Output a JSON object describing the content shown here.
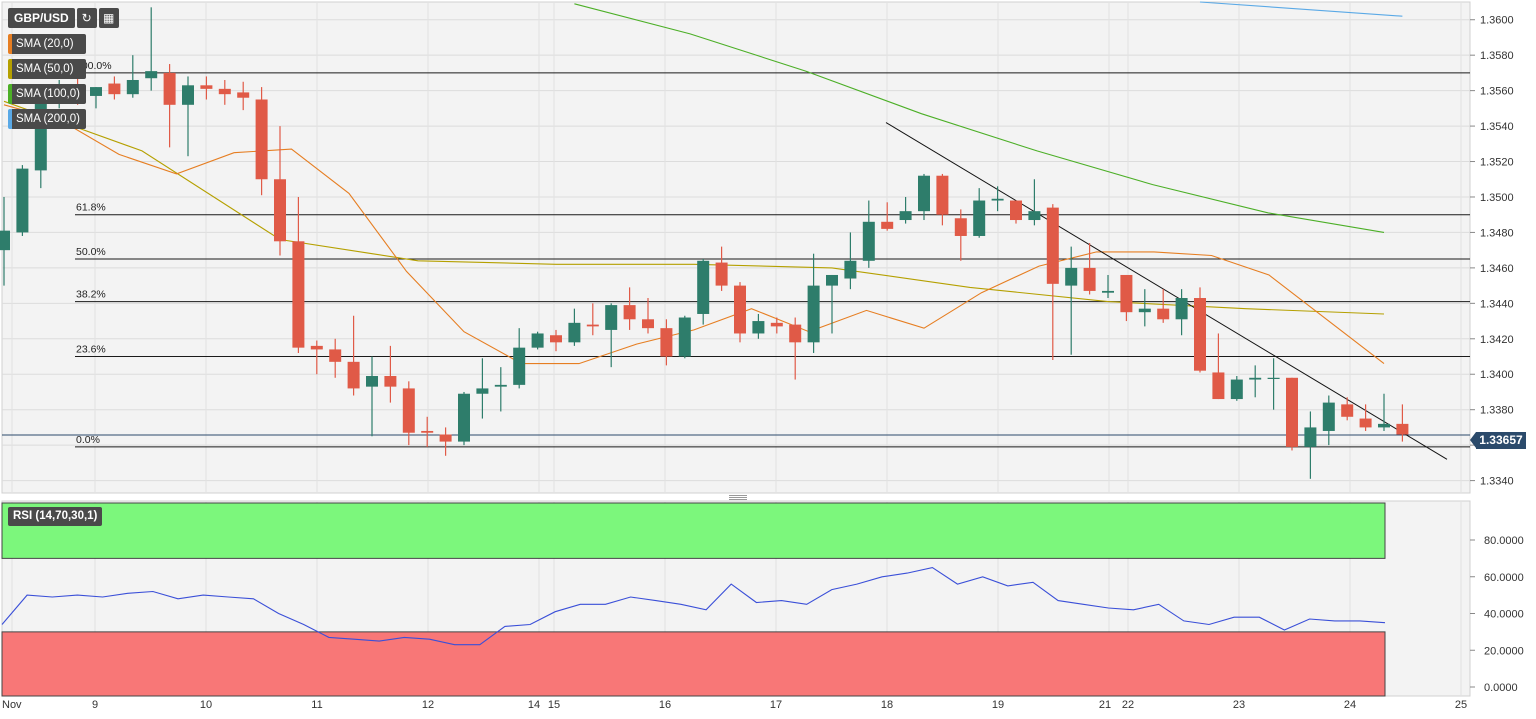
{
  "toolbar": {
    "symbol": "GBP/USD",
    "refresh_icon": "refresh-icon",
    "calendar_icon": "calendar-icon"
  },
  "indicators": [
    {
      "label": "SMA (20,0)",
      "color": "#e67e22"
    },
    {
      "label": "SMA (50,0)",
      "color": "#b5a000"
    },
    {
      "label": "SMA (100,0)",
      "color": "#4caf27"
    },
    {
      "label": "SMA (200,0)",
      "color": "#5aa9e6"
    }
  ],
  "current_price": "1.33657",
  "rsi": {
    "label": "RSI (14,70,30,1)"
  },
  "colors": {
    "up": "#2e7d6b",
    "down": "#e05a47",
    "rsi_line": "#3a4fd8",
    "overbought": "#7cf77c",
    "oversold": "#f87777"
  },
  "chart_data": [
    {
      "type": "candlestick",
      "symbol": "GBP/USD",
      "x_labels": [
        "Nov",
        "9",
        "10",
        "11",
        "12",
        "14",
        "15",
        "16",
        "17",
        "18",
        "19",
        "21",
        "22",
        "23",
        "24",
        "25"
      ],
      "y_ticks": [
        "1.3340",
        "1.3360",
        "1.3380",
        "1.3400",
        "1.3420",
        "1.3440",
        "1.3460",
        "1.3480",
        "1.3500",
        "1.3520",
        "1.3540",
        "1.3560",
        "1.3580",
        "1.3600"
      ],
      "ylim": [
        1.3333,
        1.361
      ],
      "fibonacci": [
        {
          "label": "100.0%",
          "value": 1.357
        },
        {
          "label": "61.8%",
          "value": 1.349
        },
        {
          "label": "50.0%",
          "value": 1.3465
        },
        {
          "label": "38.2%",
          "value": 1.3441
        },
        {
          "label": "23.6%",
          "value": 1.341
        },
        {
          "label": "0.0%",
          "value": 1.3359
        }
      ],
      "current_price": 1.33657,
      "trendline": {
        "start": 1.3542,
        "end": 1.3352
      },
      "candles": [
        {
          "o": 1.347,
          "h": 1.35,
          "l": 1.345,
          "c": 1.3481
        },
        {
          "o": 1.348,
          "h": 1.3518,
          "l": 1.3478,
          "c": 1.3516
        },
        {
          "o": 1.3515,
          "h": 1.356,
          "l": 1.3505,
          "c": 1.3558
        },
        {
          "o": 1.3556,
          "h": 1.3566,
          "l": 1.355,
          "c": 1.3561
        },
        {
          "o": 1.3562,
          "h": 1.357,
          "l": 1.3552,
          "c": 1.3556
        },
        {
          "o": 1.3557,
          "h": 1.3562,
          "l": 1.355,
          "c": 1.3562
        },
        {
          "o": 1.3564,
          "h": 1.3568,
          "l": 1.3555,
          "c": 1.3558
        },
        {
          "o": 1.3558,
          "h": 1.358,
          "l": 1.3556,
          "c": 1.3566
        },
        {
          "o": 1.3567,
          "h": 1.3607,
          "l": 1.356,
          "c": 1.3571
        },
        {
          "o": 1.357,
          "h": 1.3575,
          "l": 1.3528,
          "c": 1.3552
        },
        {
          "o": 1.3552,
          "h": 1.3568,
          "l": 1.3523,
          "c": 1.3563
        },
        {
          "o": 1.3563,
          "h": 1.3568,
          "l": 1.3555,
          "c": 1.3561
        },
        {
          "o": 1.3561,
          "h": 1.3566,
          "l": 1.3552,
          "c": 1.3558
        },
        {
          "o": 1.3559,
          "h": 1.3565,
          "l": 1.3549,
          "c": 1.3556
        },
        {
          "o": 1.3555,
          "h": 1.3562,
          "l": 1.3501,
          "c": 1.351
        },
        {
          "o": 1.351,
          "h": 1.354,
          "l": 1.3467,
          "c": 1.3475
        },
        {
          "o": 1.3475,
          "h": 1.35,
          "l": 1.3412,
          "c": 1.3415
        },
        {
          "o": 1.3416,
          "h": 1.3419,
          "l": 1.34,
          "c": 1.3414
        },
        {
          "o": 1.3414,
          "h": 1.342,
          "l": 1.3398,
          "c": 1.3407
        },
        {
          "o": 1.3407,
          "h": 1.3433,
          "l": 1.3388,
          "c": 1.3392
        },
        {
          "o": 1.3393,
          "h": 1.341,
          "l": 1.3365,
          "c": 1.3399
        },
        {
          "o": 1.3399,
          "h": 1.3416,
          "l": 1.3384,
          "c": 1.3393
        },
        {
          "o": 1.3392,
          "h": 1.3396,
          "l": 1.336,
          "c": 1.3367
        },
        {
          "o": 1.3368,
          "h": 1.3376,
          "l": 1.3359,
          "c": 1.3367
        },
        {
          "o": 1.3366,
          "h": 1.337,
          "l": 1.3354,
          "c": 1.3362
        },
        {
          "o": 1.3362,
          "h": 1.339,
          "l": 1.336,
          "c": 1.3389
        },
        {
          "o": 1.3389,
          "h": 1.3409,
          "l": 1.3375,
          "c": 1.3392
        },
        {
          "o": 1.3393,
          "h": 1.3404,
          "l": 1.3379,
          "c": 1.3394
        },
        {
          "o": 1.3394,
          "h": 1.3426,
          "l": 1.3392,
          "c": 1.3415
        },
        {
          "o": 1.3415,
          "h": 1.3424,
          "l": 1.3414,
          "c": 1.3423
        },
        {
          "o": 1.3422,
          "h": 1.3425,
          "l": 1.3413,
          "c": 1.3418
        },
        {
          "o": 1.3418,
          "h": 1.3437,
          "l": 1.3416,
          "c": 1.3429
        },
        {
          "o": 1.3428,
          "h": 1.344,
          "l": 1.3422,
          "c": 1.3427
        },
        {
          "o": 1.3425,
          "h": 1.344,
          "l": 1.3404,
          "c": 1.3439
        },
        {
          "o": 1.3439,
          "h": 1.3449,
          "l": 1.3425,
          "c": 1.3431
        },
        {
          "o": 1.3431,
          "h": 1.3443,
          "l": 1.3423,
          "c": 1.3426
        },
        {
          "o": 1.3426,
          "h": 1.3431,
          "l": 1.3405,
          "c": 1.341
        },
        {
          "o": 1.341,
          "h": 1.3433,
          "l": 1.3409,
          "c": 1.3432
        },
        {
          "o": 1.3434,
          "h": 1.3465,
          "l": 1.3428,
          "c": 1.3464
        },
        {
          "o": 1.3463,
          "h": 1.3472,
          "l": 1.3447,
          "c": 1.345
        },
        {
          "o": 1.345,
          "h": 1.3452,
          "l": 1.3418,
          "c": 1.3423
        },
        {
          "o": 1.3423,
          "h": 1.3434,
          "l": 1.342,
          "c": 1.343
        },
        {
          "o": 1.3429,
          "h": 1.3432,
          "l": 1.3423,
          "c": 1.3427
        },
        {
          "o": 1.3428,
          "h": 1.3432,
          "l": 1.3397,
          "c": 1.3418
        },
        {
          "o": 1.3418,
          "h": 1.3468,
          "l": 1.3412,
          "c": 1.345
        },
        {
          "o": 1.345,
          "h": 1.3456,
          "l": 1.3423,
          "c": 1.3456
        },
        {
          "o": 1.3454,
          "h": 1.348,
          "l": 1.3448,
          "c": 1.3464
        },
        {
          "o": 1.3464,
          "h": 1.3498,
          "l": 1.346,
          "c": 1.3486
        },
        {
          "o": 1.3486,
          "h": 1.3497,
          "l": 1.3481,
          "c": 1.3482
        },
        {
          "o": 1.3487,
          "h": 1.35,
          "l": 1.3485,
          "c": 1.3492
        },
        {
          "o": 1.3492,
          "h": 1.3513,
          "l": 1.3487,
          "c": 1.3512
        },
        {
          "o": 1.3512,
          "h": 1.3513,
          "l": 1.3484,
          "c": 1.349
        },
        {
          "o": 1.3488,
          "h": 1.3493,
          "l": 1.3464,
          "c": 1.3478
        },
        {
          "o": 1.3478,
          "h": 1.3505,
          "l": 1.3477,
          "c": 1.3498
        },
        {
          "o": 1.3498,
          "h": 1.3506,
          "l": 1.3492,
          "c": 1.3499
        },
        {
          "o": 1.3498,
          "h": 1.3497,
          "l": 1.3485,
          "c": 1.3487
        },
        {
          "o": 1.3487,
          "h": 1.351,
          "l": 1.3484,
          "c": 1.3492
        },
        {
          "o": 1.3494,
          "h": 1.3496,
          "l": 1.3408,
          "c": 1.3451
        },
        {
          "o": 1.345,
          "h": 1.3472,
          "l": 1.3411,
          "c": 1.346
        },
        {
          "o": 1.346,
          "h": 1.3474,
          "l": 1.3445,
          "c": 1.3447
        },
        {
          "o": 1.3446,
          "h": 1.3456,
          "l": 1.3443,
          "c": 1.3447
        },
        {
          "o": 1.3456,
          "h": 1.3456,
          "l": 1.343,
          "c": 1.3435
        },
        {
          "o": 1.3435,
          "h": 1.3448,
          "l": 1.3427,
          "c": 1.3437
        },
        {
          "o": 1.3437,
          "h": 1.3448,
          "l": 1.3429,
          "c": 1.3431
        },
        {
          "o": 1.3431,
          "h": 1.3448,
          "l": 1.3422,
          "c": 1.3443
        },
        {
          "o": 1.3443,
          "h": 1.3449,
          "l": 1.3401,
          "c": 1.3402
        },
        {
          "o": 1.3401,
          "h": 1.3423,
          "l": 1.3386,
          "c": 1.3386
        },
        {
          "o": 1.3386,
          "h": 1.3399,
          "l": 1.3385,
          "c": 1.3397
        },
        {
          "o": 1.3397,
          "h": 1.3405,
          "l": 1.3387,
          "c": 1.3398
        },
        {
          "o": 1.3398,
          "h": 1.3409,
          "l": 1.338,
          "c": 1.3398
        },
        {
          "o": 1.3398,
          "h": 1.3398,
          "l": 1.3357,
          "c": 1.3359
        },
        {
          "o": 1.3359,
          "h": 1.3379,
          "l": 1.3341,
          "c": 1.337
        },
        {
          "o": 1.3368,
          "h": 1.3388,
          "l": 1.336,
          "c": 1.3384
        },
        {
          "o": 1.3383,
          "h": 1.3387,
          "l": 1.3374,
          "c": 1.3376
        },
        {
          "o": 1.3375,
          "h": 1.3383,
          "l": 1.3368,
          "c": 1.337
        },
        {
          "o": 1.337,
          "h": 1.3389,
          "l": 1.3368,
          "c": 1.3372
        },
        {
          "o": 1.3372,
          "h": 1.3383,
          "l": 1.3362,
          "c": 1.3366
        }
      ],
      "sma20": [
        1.3552,
        1.3543,
        1.3524,
        1.3513,
        1.3525,
        1.3527,
        1.3502,
        1.3458,
        1.3424,
        1.3406,
        1.3406,
        1.3417,
        1.3425,
        1.3437,
        1.3424,
        1.3436,
        1.3426,
        1.3446,
        1.3461,
        1.3469,
        1.3469,
        1.3467,
        1.3456,
        1.3431,
        1.3406
      ],
      "sma50": [
        1.3554,
        1.3526,
        1.3476,
        1.3464,
        1.3462,
        1.3462,
        1.346,
        1.3449,
        1.3441,
        1.3437,
        1.3434
      ],
      "sma100": [
        1.3609,
        1.3592,
        1.3571,
        1.3547,
        1.3526,
        1.3507,
        1.3491,
        1.348
      ],
      "sma200": [
        1.361,
        1.3602
      ],
      "rsi_values": [
        34,
        50,
        49,
        50,
        49,
        51,
        52,
        48,
        50,
        49,
        48,
        40,
        34,
        27,
        26,
        25,
        27,
        26,
        23,
        23,
        33,
        34,
        41,
        45,
        45,
        49,
        47,
        45,
        42,
        56,
        46,
        47,
        45,
        53,
        56,
        60,
        62,
        65,
        56,
        60,
        55,
        57,
        47,
        45,
        43,
        42,
        45,
        36,
        34,
        38,
        38,
        31,
        37,
        36,
        36,
        35
      ],
      "rsi_ticks": [
        "0.0000",
        "20.0000",
        "40.0000",
        "60.0000",
        "80.0000"
      ],
      "rsi_levels": [
        70,
        30
      ]
    }
  ]
}
